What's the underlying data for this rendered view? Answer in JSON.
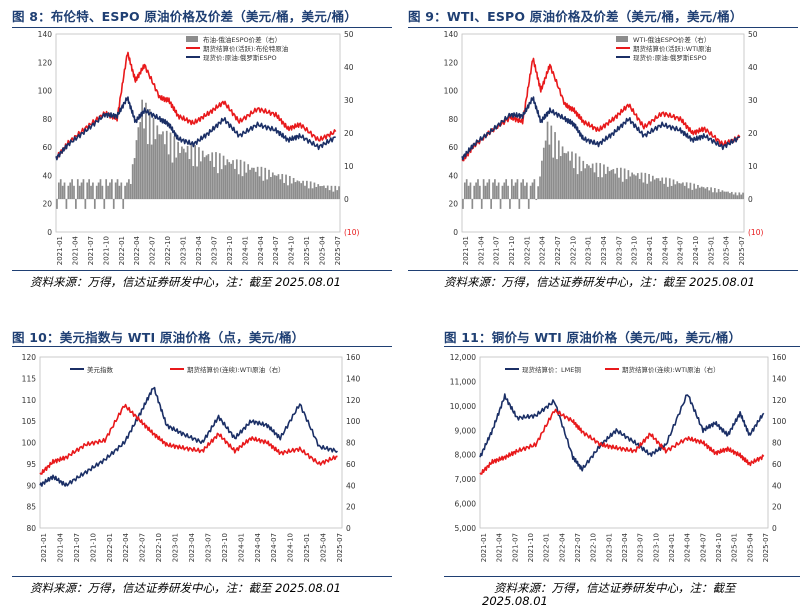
{
  "figures": [
    {
      "title": "图 8：布伦特、ESPO 原油价格及价差（美元/桶，美元/桶）"
    },
    {
      "title": "图 9：WTI、ESPO 原油价格及价差（美元/桶，美元/桶）"
    },
    {
      "title": "图 10：美元指数与 WTI 原油价格（点，美元/桶）"
    },
    {
      "title": "图 11：铜价与 WTI 原油价格（美元/吨，美元/桶）"
    }
  ],
  "sources": [
    {
      "text": "资料来源：万得，信达证券研发中心，注：截至 2025.08.01"
    },
    {
      "text": "资料来源：万得，信达证券研发中心，注：截至 2025.08.01"
    },
    {
      "text": "资料来源：万得，信达证券研发中心，注：截至 2025.08.01"
    },
    {
      "text": "资料来源：万得，信达证券研发中心，注：截至",
      "text2": "2025.08.01"
    }
  ],
  "colors": {
    "red": "#e8191b",
    "navy": "#1b2f66",
    "gray": "#8c8c8c",
    "title": "#1f3f73"
  },
  "chart_data": [
    {
      "type": "line",
      "x_ticks": [
        "2021-01",
        "2021-04",
        "2021-07",
        "2021-10",
        "2022-01",
        "2022-04",
        "2022-07",
        "2022-10",
        "2023-01",
        "2023-04",
        "2023-07",
        "2023-10",
        "2024-01",
        "2024-04",
        "2024-07",
        "2024-10",
        "2025-01",
        "2025-04",
        "2025-07"
      ],
      "y_left_ticks": [
        "0",
        "20",
        "40",
        "60",
        "80",
        "100",
        "120",
        "140"
      ],
      "y_right_ticks": [
        "(10)",
        "0",
        "10",
        "20",
        "30",
        "40",
        "50"
      ],
      "y_left_range": [
        0,
        140
      ],
      "y_right_range": [
        -10,
        50
      ],
      "series": [
        {
          "name": "布油-俄油ESPO价差（右）",
          "kind": "bar",
          "axis": "right",
          "x": [
            2022.2,
            2022.4,
            2022.6,
            2023.0,
            2023.5,
            2024.0,
            2024.5,
            2025.0,
            2025.5
          ],
          "values": [
            3,
            32,
            25,
            18,
            15,
            12,
            9,
            6,
            4
          ]
        },
        {
          "name": "期货结算价(活跃):布伦特原油",
          "kind": "line",
          "axis": "left",
          "x": [
            2021.0,
            2021.2,
            2021.5,
            2021.8,
            2022.0,
            2022.17,
            2022.3,
            2022.45,
            2022.7,
            2022.85,
            2023.0,
            2023.25,
            2023.5,
            2023.75,
            2024.0,
            2024.3,
            2024.6,
            2024.8,
            2025.0,
            2025.3,
            2025.58
          ],
          "values": [
            52,
            63,
            74,
            84,
            80,
            127,
            107,
            118,
            95,
            93,
            82,
            77,
            84,
            92,
            78,
            87,
            83,
            73,
            76,
            65,
            71
          ]
        },
        {
          "name": "现货价:原油:俄罗斯ESPO",
          "kind": "line",
          "axis": "left",
          "x": [
            2021.0,
            2021.2,
            2021.5,
            2021.8,
            2022.0,
            2022.17,
            2022.3,
            2022.45,
            2022.7,
            2022.85,
            2023.0,
            2023.25,
            2023.5,
            2023.75,
            2024.0,
            2024.3,
            2024.6,
            2024.8,
            2025.0,
            2025.3,
            2025.58
          ],
          "values": [
            52,
            62,
            72,
            83,
            82,
            95,
            78,
            86,
            80,
            76,
            66,
            62,
            70,
            80,
            68,
            76,
            72,
            65,
            68,
            60,
            67
          ]
        }
      ]
    },
    {
      "type": "line",
      "x_ticks": [
        "2021-01",
        "2021-04",
        "2021-07",
        "2021-10",
        "2022-01",
        "2022-04",
        "2022-07",
        "2022-10",
        "2023-01",
        "2023-04",
        "2023-07",
        "2023-10",
        "2024-01",
        "2024-04",
        "2024-07",
        "2024-10",
        "2025-01",
        "2025-04",
        "2025-07"
      ],
      "y_left_ticks": [
        "0",
        "20",
        "40",
        "60",
        "80",
        "100",
        "120",
        "140"
      ],
      "y_right_ticks": [
        "(10)",
        "0",
        "10",
        "20",
        "30",
        "40",
        "50"
      ],
      "y_left_range": [
        0,
        140
      ],
      "y_right_range": [
        -10,
        50
      ],
      "series": [
        {
          "name": "WTI-俄油ESPO价差（右）",
          "kind": "bar",
          "axis": "right",
          "x": [
            2022.2,
            2022.4,
            2022.6,
            2023.0,
            2023.5,
            2024.0,
            2024.5,
            2025.0,
            2025.5
          ],
          "values": [
            -4,
            25,
            18,
            12,
            10,
            8,
            6,
            4,
            2
          ]
        },
        {
          "name": "期货结算价(活跃):WTI原油",
          "kind": "line",
          "axis": "left",
          "x": [
            2021.0,
            2021.2,
            2021.5,
            2021.8,
            2022.0,
            2022.17,
            2022.3,
            2022.45,
            2022.7,
            2022.85,
            2023.0,
            2023.25,
            2023.5,
            2023.75,
            2024.0,
            2024.3,
            2024.6,
            2024.8,
            2025.0,
            2025.3,
            2025.58
          ],
          "values": [
            50,
            61,
            72,
            81,
            78,
            123,
            100,
            118,
            90,
            86,
            78,
            72,
            80,
            90,
            74,
            84,
            80,
            70,
            73,
            62,
            67
          ]
        },
        {
          "name": "现货价:原油:俄罗斯ESPO",
          "kind": "line",
          "axis": "left",
          "x": [
            2021.0,
            2021.2,
            2021.5,
            2021.8,
            2022.0,
            2022.17,
            2022.3,
            2022.45,
            2022.7,
            2022.85,
            2023.0,
            2023.25,
            2023.5,
            2023.75,
            2024.0,
            2024.3,
            2024.6,
            2024.8,
            2025.0,
            2025.3,
            2025.58
          ],
          "values": [
            52,
            62,
            72,
            83,
            82,
            95,
            78,
            86,
            80,
            76,
            66,
            62,
            70,
            80,
            68,
            76,
            72,
            65,
            68,
            60,
            67
          ]
        }
      ]
    },
    {
      "type": "line",
      "x_ticks": [
        "2021-01",
        "2021-04",
        "2021-07",
        "2021-10",
        "2022-01",
        "2022-04",
        "2022-07",
        "2022-10",
        "2023-01",
        "2023-04",
        "2023-07",
        "2023-10",
        "2024-01",
        "2024-04",
        "2024-07",
        "2024-10",
        "2025-01",
        "2025-04",
        "2025-07"
      ],
      "y_left_ticks": [
        "80",
        "85",
        "90",
        "95",
        "100",
        "105",
        "110",
        "115",
        "120"
      ],
      "y_right_ticks": [
        "0",
        "20",
        "40",
        "60",
        "80",
        "100",
        "120",
        "140",
        "160"
      ],
      "y_left_range": [
        80,
        120
      ],
      "y_right_range": [
        0,
        160
      ],
      "series": [
        {
          "name": "美元指数",
          "kind": "line",
          "axis": "left",
          "x": [
            2021.0,
            2021.2,
            2021.4,
            2021.7,
            2022.0,
            2022.3,
            2022.55,
            2022.75,
            2022.95,
            2023.2,
            2023.5,
            2023.75,
            2024.0,
            2024.25,
            2024.5,
            2024.7,
            2025.0,
            2025.3,
            2025.58
          ],
          "values": [
            90,
            92,
            90,
            93,
            96,
            100,
            107,
            113,
            104,
            102,
            100,
            106,
            101,
            105,
            104,
            101,
            109,
            99,
            98
          ]
        },
        {
          "name": "期货结算价(连续):WTI原油（右）",
          "kind": "line",
          "axis": "right",
          "x": [
            2021.0,
            2021.2,
            2021.4,
            2021.7,
            2022.0,
            2022.3,
            2022.55,
            2022.75,
            2022.95,
            2023.2,
            2023.5,
            2023.75,
            2024.0,
            2024.25,
            2024.5,
            2024.7,
            2025.0,
            2025.3,
            2025.58
          ],
          "values": [
            50,
            62,
            66,
            78,
            82,
            115,
            100,
            88,
            78,
            75,
            72,
            88,
            72,
            84,
            80,
            70,
            74,
            60,
            67
          ]
        }
      ]
    },
    {
      "type": "line",
      "x_ticks": [
        "2021-01",
        "2021-04",
        "2021-07",
        "2021-10",
        "2022-01",
        "2022-04",
        "2022-07",
        "2022-10",
        "2023-01",
        "2023-04",
        "2023-07",
        "2023-10",
        "2024-01",
        "2024-04",
        "2024-07",
        "2024-10",
        "2025-01",
        "2025-04",
        "2025-07"
      ],
      "y_left_ticks": [
        "5,000",
        "6,000",
        "7,000",
        "8,000",
        "9,000",
        "10,000",
        "11,000",
        "12,000"
      ],
      "y_right_ticks": [
        "0",
        "20",
        "40",
        "60",
        "80",
        "100",
        "120",
        "140",
        "160"
      ],
      "y_left_range": [
        5000,
        12000
      ],
      "y_right_range": [
        0,
        160
      ],
      "series": [
        {
          "name": "现货结算价：LME铜",
          "kind": "line",
          "axis": "left",
          "x": [
            2021.0,
            2021.2,
            2021.4,
            2021.6,
            2021.9,
            2022.2,
            2022.5,
            2022.65,
            2022.95,
            2023.2,
            2023.5,
            2023.75,
            2024.0,
            2024.35,
            2024.6,
            2024.8,
            2025.0,
            2025.2,
            2025.35,
            2025.58
          ],
          "values": [
            7900,
            9000,
            10400,
            9500,
            9600,
            10200,
            7900,
            7400,
            8400,
            9000,
            8500,
            8000,
            8400,
            10500,
            9000,
            9300,
            8800,
            9700,
            8800,
            9700
          ]
        },
        {
          "name": "期货结算价(连续):WTI原油（右）",
          "kind": "line",
          "axis": "right",
          "x": [
            2021.0,
            2021.2,
            2021.4,
            2021.6,
            2021.9,
            2022.2,
            2022.5,
            2022.65,
            2022.95,
            2023.2,
            2023.5,
            2023.75,
            2024.0,
            2024.35,
            2024.6,
            2024.8,
            2025.0,
            2025.2,
            2025.35,
            2025.58
          ],
          "values": [
            50,
            62,
            66,
            72,
            78,
            110,
            100,
            90,
            78,
            75,
            72,
            88,
            72,
            84,
            80,
            70,
            74,
            68,
            60,
            67
          ]
        }
      ]
    }
  ]
}
